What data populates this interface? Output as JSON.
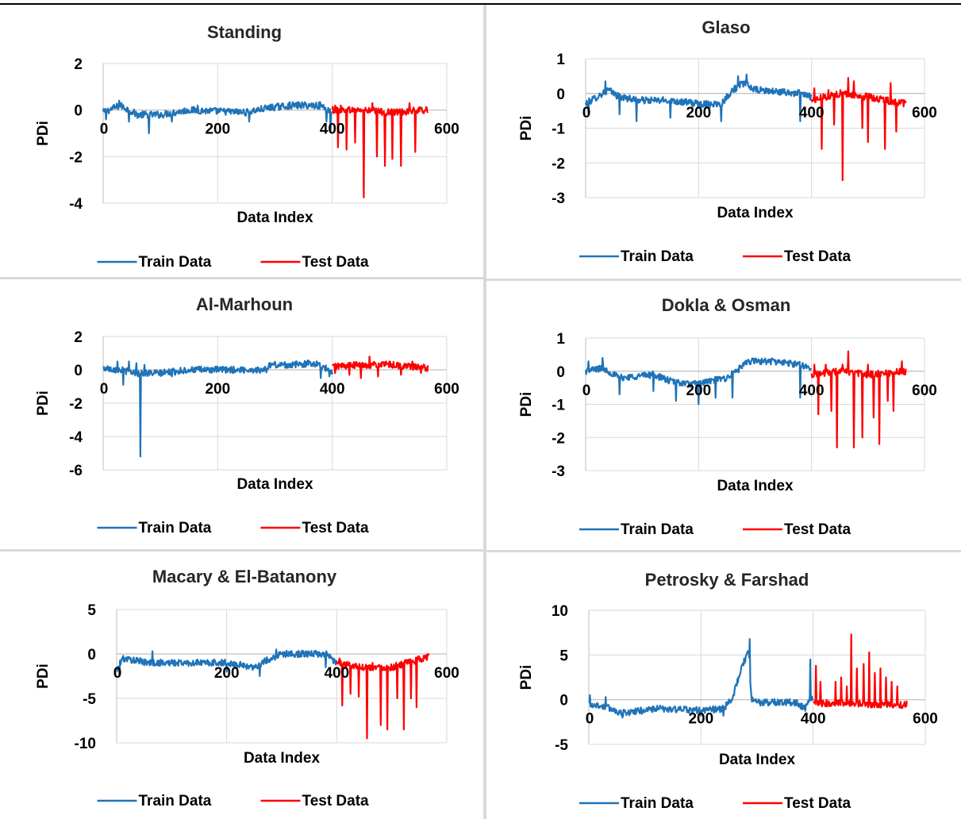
{
  "colors": {
    "train": "#1f73b8",
    "test": "#ff0000",
    "grid": "#d9d9d9",
    "axis": "#bfbfbf",
    "divider": "#d9d9d9"
  },
  "chart_data": [
    {
      "type": "line",
      "title": "Standing",
      "xlabel": "Data Index",
      "ylabel": "PDi",
      "xlim": [
        0,
        600
      ],
      "ylim": [
        -4,
        2
      ],
      "xticks": [
        "0",
        "200",
        "400",
        "600"
      ],
      "yticks": [
        "2",
        "0",
        "-2",
        "-4"
      ],
      "legend_position": "bottom",
      "series": [
        {
          "name": "Train Data",
          "x_range": [
            0,
            400
          ],
          "base": [
            [
              0,
              -0.1
            ],
            [
              30,
              0.2
            ],
            [
              60,
              -0.2
            ],
            [
              100,
              -0.2
            ],
            [
              150,
              0
            ],
            [
              250,
              -0.1
            ],
            [
              290,
              0.1
            ],
            [
              330,
              0.2
            ],
            [
              380,
              0.2
            ],
            [
              400,
              -0.1
            ]
          ],
          "spikes": [
            [
              5,
              -0.4
            ],
            [
              28,
              0.4
            ],
            [
              45,
              -0.5
            ],
            [
              80,
              -1.0
            ],
            [
              120,
              -0.5
            ],
            [
              165,
              0.2
            ],
            [
              255,
              -0.5
            ],
            [
              320,
              0.1
            ],
            [
              390,
              -0.5
            ],
            [
              397,
              -0.9
            ]
          ]
        },
        {
          "name": "Test Data",
          "x_range": [
            400,
            567
          ],
          "base": [
            [
              400,
              0
            ],
            [
              450,
              0
            ],
            [
              500,
              -0.1
            ],
            [
              567,
              0
            ]
          ],
          "spikes": [
            [
              405,
              0.2
            ],
            [
              410,
              -1.6
            ],
            [
              415,
              0.2
            ],
            [
              425,
              -1.7
            ],
            [
              440,
              -1.4
            ],
            [
              455,
              -3.75
            ],
            [
              470,
              0.3
            ],
            [
              478,
              -2.0
            ],
            [
              492,
              -2.4
            ],
            [
              505,
              -2.1
            ],
            [
              520,
              -2.4
            ],
            [
              535,
              0.3
            ],
            [
              545,
              -1.8
            ]
          ]
        }
      ]
    },
    {
      "type": "line",
      "title": "Glaso",
      "xlabel": "Data Index",
      "ylabel": "PDi",
      "xlim": [
        0,
        600
      ],
      "ylim": [
        -3,
        1
      ],
      "xticks": [
        "0",
        "200",
        "400",
        "600"
      ],
      "yticks": [
        "1",
        "0",
        "-1",
        "-2",
        "-3"
      ],
      "legend_position": "bottom",
      "series": [
        {
          "name": "Train Data",
          "x_range": [
            0,
            400
          ],
          "base": [
            [
              0,
              -0.3
            ],
            [
              20,
              -0.1
            ],
            [
              40,
              0.1
            ],
            [
              60,
              -0.1
            ],
            [
              100,
              -0.2
            ],
            [
              150,
              -0.2
            ],
            [
              200,
              -0.3
            ],
            [
              240,
              -0.3
            ],
            [
              260,
              0.1
            ],
            [
              280,
              0.3
            ],
            [
              300,
              0.1
            ],
            [
              380,
              0
            ],
            [
              400,
              -0.1
            ]
          ],
          "spikes": [
            [
              5,
              -0.6
            ],
            [
              35,
              0.35
            ],
            [
              60,
              -0.6
            ],
            [
              90,
              -0.8
            ],
            [
              150,
              -0.7
            ],
            [
              240,
              -0.8
            ],
            [
              270,
              0.5
            ],
            [
              285,
              0.55
            ],
            [
              380,
              -0.8
            ]
          ]
        },
        {
          "name": "Test Data",
          "x_range": [
            400,
            567
          ],
          "base": [
            [
              400,
              -0.2
            ],
            [
              450,
              0
            ],
            [
              500,
              -0.1
            ],
            [
              567,
              -0.3
            ]
          ],
          "spikes": [
            [
              405,
              0.15
            ],
            [
              418,
              -1.6
            ],
            [
              430,
              0.1
            ],
            [
              440,
              -0.9
            ],
            [
              455,
              -2.5
            ],
            [
              465,
              0.45
            ],
            [
              475,
              0.35
            ],
            [
              490,
              -1.0
            ],
            [
              500,
              -1.4
            ],
            [
              520,
              -0.2
            ],
            [
              530,
              -1.6
            ],
            [
              540,
              0.3
            ],
            [
              550,
              -1.1
            ]
          ]
        }
      ]
    },
    {
      "type": "line",
      "title": "Al-Marhoun",
      "xlabel": "Data Index",
      "ylabel": "PDi",
      "xlim": [
        0,
        600
      ],
      "ylim": [
        -6,
        2
      ],
      "xticks": [
        "0",
        "200",
        "400",
        "600"
      ],
      "yticks": [
        "2",
        "0",
        "-2",
        "-4",
        "-6"
      ],
      "legend_position": "bottom",
      "series": [
        {
          "name": "Train Data",
          "x_range": [
            0,
            400
          ],
          "base": [
            [
              0,
              0.1
            ],
            [
              30,
              0
            ],
            [
              60,
              -0.2
            ],
            [
              100,
              -0.2
            ],
            [
              150,
              0
            ],
            [
              250,
              0
            ],
            [
              285,
              0
            ],
            [
              290,
              0.3
            ],
            [
              330,
              0.3
            ],
            [
              370,
              0.4
            ],
            [
              400,
              -0.1
            ]
          ],
          "spikes": [
            [
              10,
              0.15
            ],
            [
              25,
              0.5
            ],
            [
              35,
              -0.9
            ],
            [
              45,
              0.5
            ],
            [
              58,
              0.4
            ],
            [
              65,
              -5.2
            ],
            [
              72,
              0.3
            ],
            [
              120,
              -0.4
            ],
            [
              380,
              -0.5
            ],
            [
              395,
              -0.4
            ]
          ]
        },
        {
          "name": "Test Data",
          "x_range": [
            400,
            567
          ],
          "base": [
            [
              400,
              0.2
            ],
            [
              450,
              0.3
            ],
            [
              500,
              0.3
            ],
            [
              567,
              0.1
            ]
          ],
          "spikes": [
            [
              405,
              -0.2
            ],
            [
              430,
              -0.3
            ],
            [
              450,
              -0.5
            ],
            [
              465,
              0.8
            ],
            [
              480,
              -0.4
            ],
            [
              500,
              0.5
            ],
            [
              520,
              -0.3
            ],
            [
              540,
              0.5
            ],
            [
              555,
              -0.2
            ]
          ]
        }
      ]
    },
    {
      "type": "line",
      "title": "Dokla & Osman",
      "xlabel": "Data Index",
      "ylabel": "PDi",
      "xlim": [
        0,
        600
      ],
      "ylim": [
        -3,
        1
      ],
      "xticks": [
        "0",
        "200",
        "400",
        "600"
      ],
      "yticks": [
        "1",
        "0",
        "-1",
        "-2",
        "-3"
      ],
      "legend_position": "bottom",
      "series": [
        {
          "name": "Train Data",
          "x_range": [
            0,
            400
          ],
          "base": [
            [
              0,
              0
            ],
            [
              30,
              0.1
            ],
            [
              60,
              -0.2
            ],
            [
              120,
              -0.1
            ],
            [
              150,
              -0.3
            ],
            [
              190,
              -0.4
            ],
            [
              220,
              -0.3
            ],
            [
              250,
              -0.2
            ],
            [
              290,
              0.3
            ],
            [
              330,
              0.3
            ],
            [
              380,
              0.2
            ],
            [
              400,
              0.1
            ]
          ],
          "spikes": [
            [
              5,
              0.3
            ],
            [
              30,
              0.4
            ],
            [
              60,
              -0.7
            ],
            [
              120,
              -0.6
            ],
            [
              160,
              -0.9
            ],
            [
              200,
              -1.0
            ],
            [
              230,
              -0.8
            ],
            [
              260,
              -0.8
            ],
            [
              380,
              -0.8
            ]
          ]
        },
        {
          "name": "Test Data",
          "x_range": [
            400,
            567
          ],
          "base": [
            [
              400,
              -0.1
            ],
            [
              450,
              0
            ],
            [
              500,
              -0.1
            ],
            [
              567,
              0
            ]
          ],
          "spikes": [
            [
              405,
              0.2
            ],
            [
              412,
              -1.3
            ],
            [
              425,
              0.2
            ],
            [
              435,
              -1.2
            ],
            [
              445,
              -2.3
            ],
            [
              455,
              0.2
            ],
            [
              465,
              0.6
            ],
            [
              475,
              -2.3
            ],
            [
              490,
              -2.0
            ],
            [
              500,
              0.2
            ],
            [
              510,
              -1.4
            ],
            [
              520,
              -2.2
            ],
            [
              535,
              -0.9
            ],
            [
              545,
              -1.2
            ],
            [
              560,
              0.3
            ]
          ]
        }
      ]
    },
    {
      "type": "line",
      "title": "Macary & El-Batanony",
      "xlabel": "Data Index",
      "ylabel": "PDi",
      "xlim": [
        0,
        600
      ],
      "ylim": [
        -10,
        5
      ],
      "xticks": [
        "0",
        "200",
        "400",
        "600"
      ],
      "yticks": [
        "5",
        "0",
        "-5",
        "-10"
      ],
      "legend_position": "bottom",
      "series": [
        {
          "name": "Train Data",
          "x_range": [
            0,
            400
          ],
          "base": [
            [
              0,
              -2
            ],
            [
              10,
              -0.5
            ],
            [
              60,
              -1
            ],
            [
              120,
              -1
            ],
            [
              200,
              -1
            ],
            [
              250,
              -1.5
            ],
            [
              280,
              -0.5
            ],
            [
              300,
              0
            ],
            [
              380,
              0
            ],
            [
              400,
              -1
            ]
          ],
          "spikes": [
            [
              5,
              -2.5
            ],
            [
              65,
              0.3
            ],
            [
              200,
              -2
            ],
            [
              260,
              -2.5
            ],
            [
              290,
              0.5
            ],
            [
              380,
              -1.5
            ]
          ]
        },
        {
          "name": "Test Data",
          "x_range": [
            400,
            567
          ],
          "base": [
            [
              400,
              -1
            ],
            [
              450,
              -1.5
            ],
            [
              500,
              -1.5
            ],
            [
              567,
              -0.3
            ]
          ],
          "spikes": [
            [
              405,
              -0.5
            ],
            [
              410,
              -5.8
            ],
            [
              425,
              -4.5
            ],
            [
              440,
              -4.8
            ],
            [
              455,
              -9.5
            ],
            [
              465,
              -1
            ],
            [
              480,
              -8
            ],
            [
              492,
              -8.5
            ],
            [
              510,
              -5
            ],
            [
              522,
              -8.5
            ],
            [
              535,
              -5
            ],
            [
              545,
              -6
            ],
            [
              560,
              -0.2
            ]
          ]
        }
      ]
    },
    {
      "type": "line",
      "title": "Petrosky & Farshad",
      "xlabel": "Data Index",
      "ylabel": "PDi",
      "xlim": [
        0,
        600
      ],
      "ylim": [
        -5,
        10
      ],
      "xticks": [
        "0",
        "200",
        "400",
        "600"
      ],
      "yticks": [
        "10",
        "5",
        "0",
        "-5"
      ],
      "legend_position": "bottom",
      "series": [
        {
          "name": "Train Data",
          "x_range": [
            0,
            400
          ],
          "base": [
            [
              0,
              -0.5
            ],
            [
              30,
              -0.8
            ],
            [
              60,
              -1.5
            ],
            [
              120,
              -1
            ],
            [
              200,
              -1.2
            ],
            [
              240,
              -1.0
            ],
            [
              255,
              0
            ],
            [
              265,
              2
            ],
            [
              275,
              4
            ],
            [
              285,
              5.5
            ],
            [
              290,
              0
            ],
            [
              300,
              -0.3
            ],
            [
              370,
              -0.3
            ],
            [
              385,
              -1.0
            ],
            [
              395,
              0
            ]
          ],
          "spikes": [
            [
              2,
              0.5
            ],
            [
              30,
              0.3
            ],
            [
              60,
              -2
            ],
            [
              200,
              -1.8
            ],
            [
              240,
              -1.8
            ],
            [
              287,
              6.8
            ],
            [
              395,
              4.5
            ]
          ]
        },
        {
          "name": "Test Data",
          "x_range": [
            400,
            567
          ],
          "base": [
            [
              400,
              -0.5
            ],
            [
              450,
              -0.3
            ],
            [
              500,
              -0.5
            ],
            [
              560,
              -0.6
            ],
            [
              567,
              -0.4
            ]
          ],
          "spikes": [
            [
              405,
              3.8
            ],
            [
              413,
              2
            ],
            [
              430,
              -0.5
            ],
            [
              440,
              2
            ],
            [
              450,
              2.5
            ],
            [
              460,
              1.5
            ],
            [
              468,
              7.3
            ],
            [
              478,
              3.5
            ],
            [
              490,
              4
            ],
            [
              500,
              5.3
            ],
            [
              510,
              3
            ],
            [
              520,
              3.5
            ],
            [
              530,
              2.5
            ],
            [
              540,
              2
            ],
            [
              550,
              1.5
            ]
          ]
        }
      ]
    }
  ]
}
